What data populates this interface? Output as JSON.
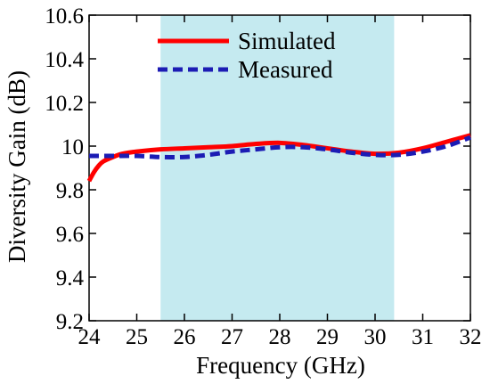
{
  "chart_data": {
    "type": "line",
    "xlabel": "Frequency (GHz)",
    "ylabel": "Diversity Gain (dB)",
    "xlim": [
      24,
      32
    ],
    "ylim": [
      9.2,
      10.6
    ],
    "xticks": [
      24,
      25,
      26,
      27,
      28,
      29,
      30,
      31,
      32
    ],
    "yticks": [
      9.2,
      9.4,
      9.6,
      9.8,
      10,
      10.2,
      10.4,
      10.6
    ],
    "xtick_labels": [
      "24",
      "25",
      "26",
      "27",
      "28",
      "29",
      "30",
      "31",
      "32"
    ],
    "ytick_labels": [
      "9.2",
      "9.4",
      "9.6",
      "9.8",
      "10",
      "10.2",
      "10.4",
      "10.6"
    ],
    "shaded_band": {
      "x_start": 25.5,
      "x_end": 30.4,
      "color": "#c5eaf0"
    },
    "legend_position": "top-center",
    "grid": false,
    "series": [
      {
        "name": "Simulated",
        "color": "#ff0000",
        "style": "solid",
        "x": [
          24.0,
          24.1,
          24.2,
          24.3,
          24.5,
          24.7,
          25.0,
          25.5,
          26.0,
          26.5,
          27.0,
          27.5,
          28.0,
          28.5,
          29.0,
          29.5,
          30.0,
          30.5,
          31.0,
          31.5,
          32.0
        ],
        "y": [
          9.84,
          9.88,
          9.91,
          9.93,
          9.95,
          9.965,
          9.975,
          9.985,
          9.99,
          9.995,
          10.0,
          10.01,
          10.015,
          10.005,
          9.99,
          9.975,
          9.965,
          9.97,
          9.99,
          10.02,
          10.05
        ]
      },
      {
        "name": "Measured",
        "color": "#1c1cb4",
        "style": "dashed",
        "x": [
          24.0,
          24.5,
          25.0,
          25.5,
          26.0,
          26.5,
          27.0,
          27.5,
          28.0,
          28.5,
          29.0,
          29.5,
          30.0,
          30.5,
          31.0,
          31.5,
          32.0
        ],
        "y": [
          9.955,
          9.955,
          9.955,
          9.95,
          9.95,
          9.96,
          9.975,
          9.985,
          9.995,
          9.995,
          9.985,
          9.97,
          9.96,
          9.96,
          9.975,
          10.0,
          10.04
        ]
      }
    ]
  }
}
